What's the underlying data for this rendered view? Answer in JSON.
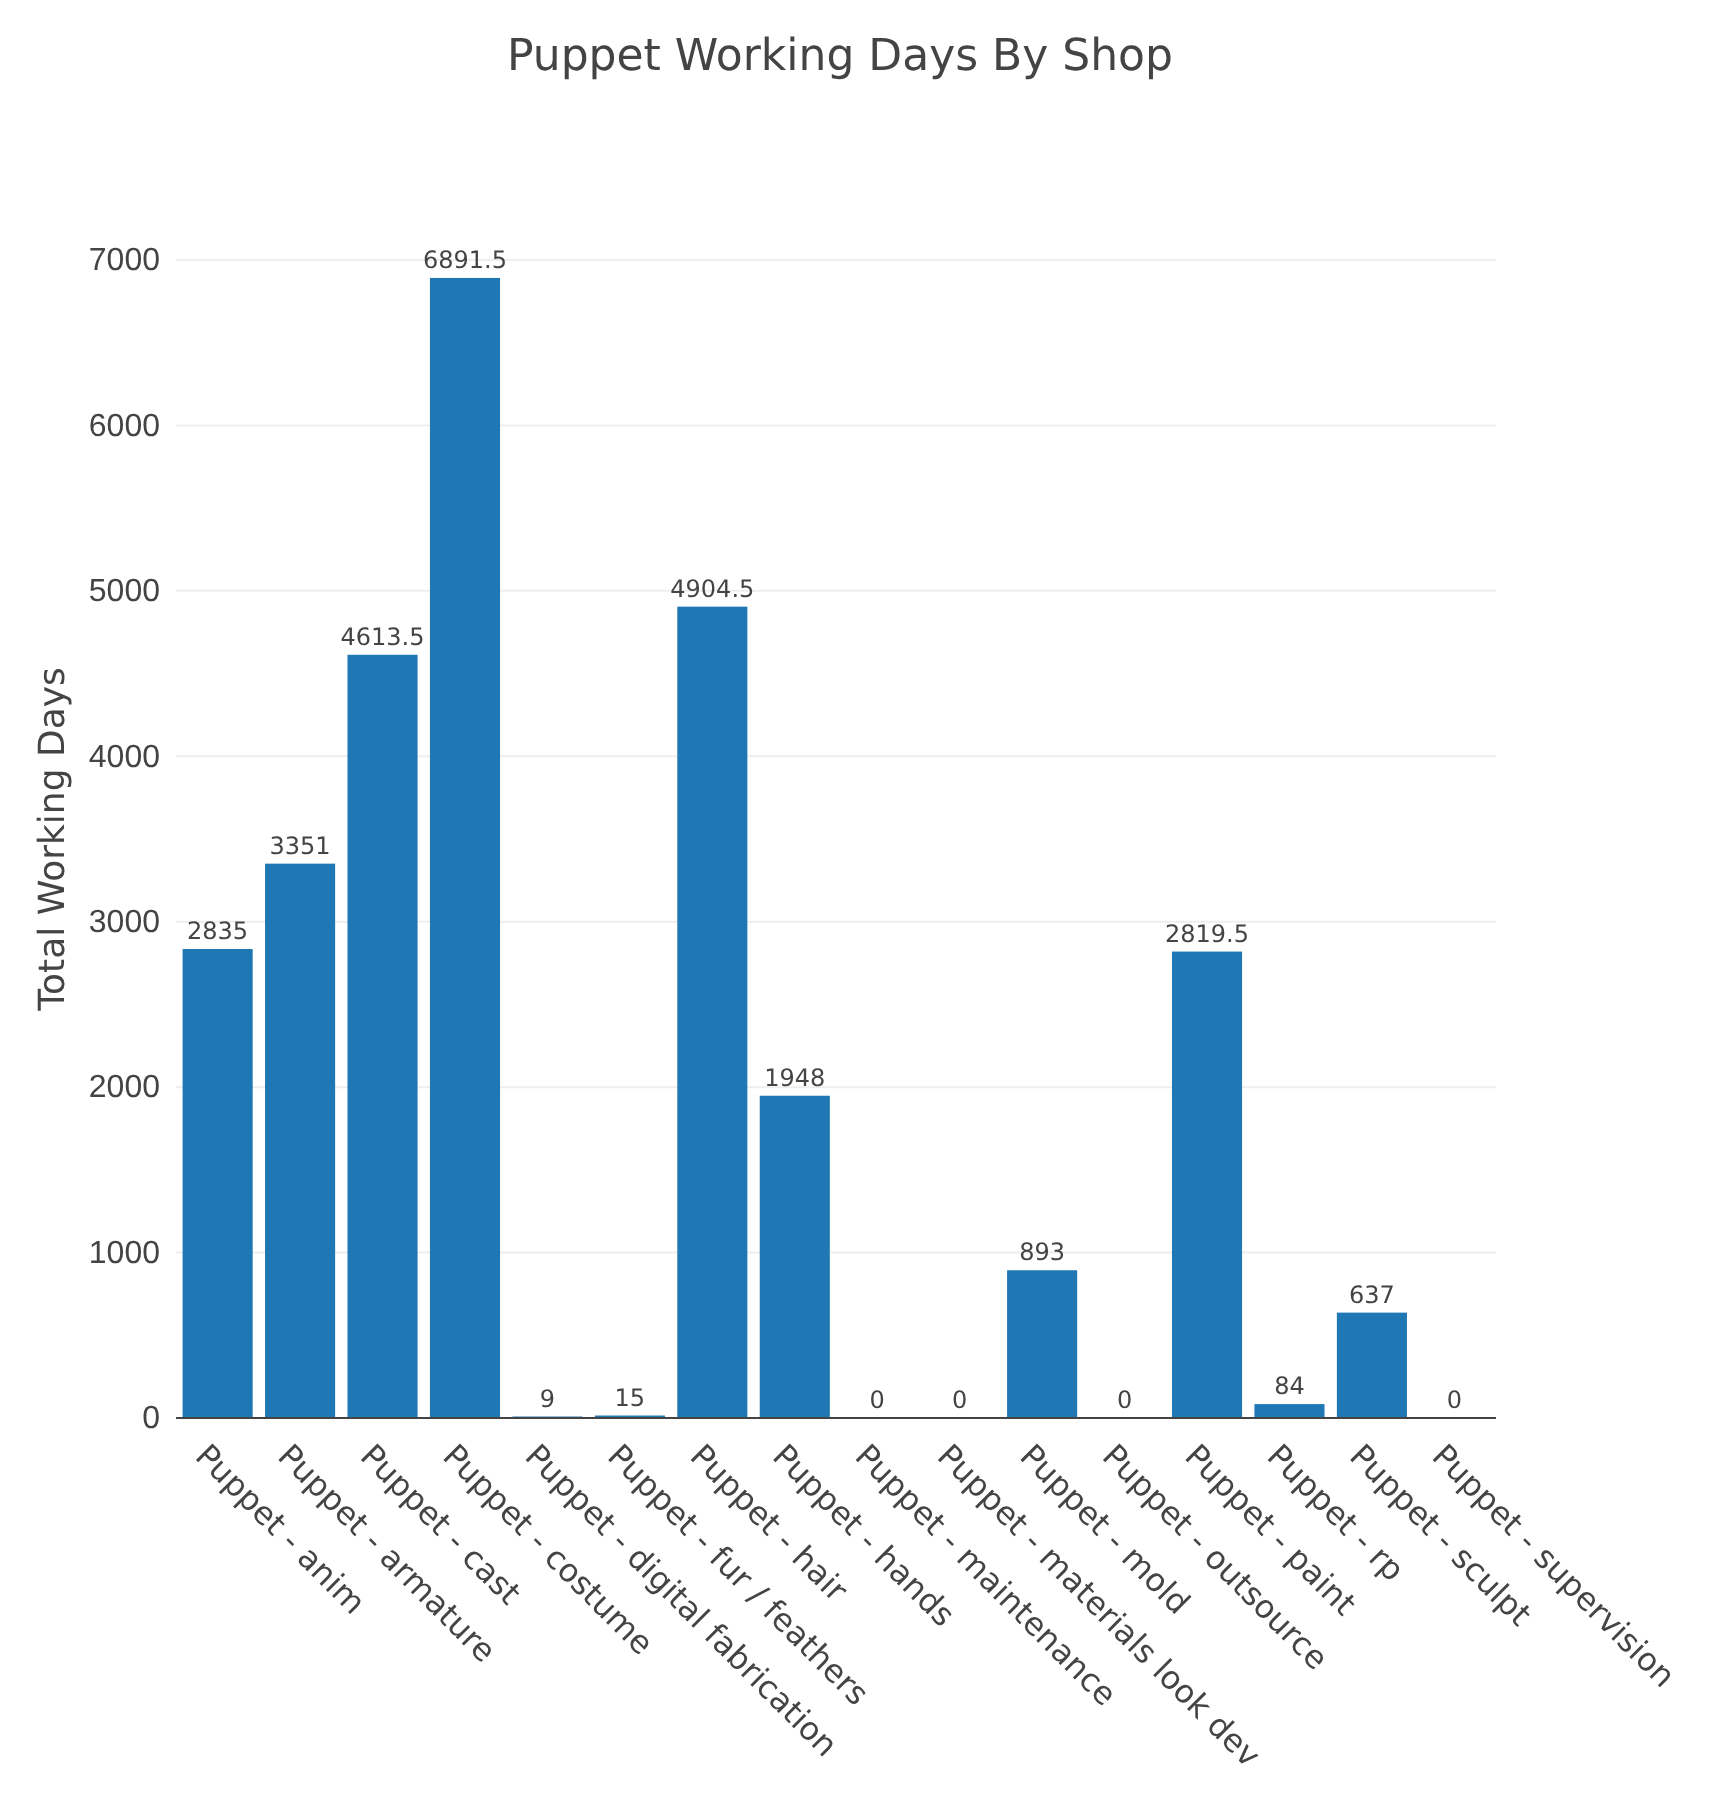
{
  "chart_data": {
    "type": "bar",
    "title": "Puppet Working Days By Shop",
    "ylabel": "Total Working Days",
    "categories": [
      "Puppet - anim",
      "Puppet - armature",
      "Puppet - cast",
      "Puppet - costume",
      "Puppet - digital fabrication",
      "Puppet - fur / feathers",
      "Puppet - hair",
      "Puppet - hands",
      "Puppet - maintenance",
      "Puppet - materials look dev",
      "Puppet - mold",
      "Puppet - outsource",
      "Puppet - paint",
      "Puppet - rp",
      "Puppet - sculpt",
      "Puppet - supervision"
    ],
    "values": [
      2835,
      3351,
      4613.5,
      6891.5,
      9,
      15,
      4904.5,
      1948,
      0,
      0,
      893,
      0,
      2819.5,
      84,
      637,
      0
    ],
    "color": "#1f77b4",
    "ylim": [
      0,
      7000
    ],
    "yticks": [
      0,
      1000,
      2000,
      3000,
      4000,
      5000,
      6000,
      7000
    ],
    "grid": "y",
    "data_labels": true
  }
}
